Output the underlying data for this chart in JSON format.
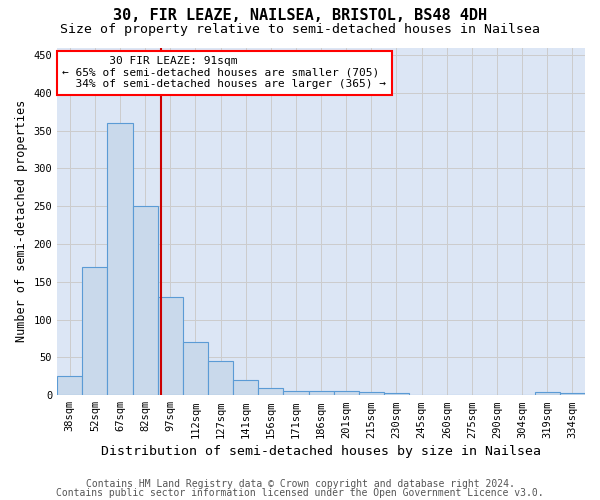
{
  "title1": "30, FIR LEAZE, NAILSEA, BRISTOL, BS48 4DH",
  "title2": "Size of property relative to semi-detached houses in Nailsea",
  "xlabel": "Distribution of semi-detached houses by size in Nailsea",
  "ylabel": "Number of semi-detached properties",
  "bin_labels": [
    "38sqm",
    "52sqm",
    "67sqm",
    "82sqm",
    "97sqm",
    "112sqm",
    "127sqm",
    "141sqm",
    "156sqm",
    "171sqm",
    "186sqm",
    "201sqm",
    "215sqm",
    "230sqm",
    "245sqm",
    "260sqm",
    "275sqm",
    "290sqm",
    "304sqm",
    "319sqm",
    "334sqm"
  ],
  "bin_values": [
    25,
    170,
    360,
    250,
    130,
    70,
    45,
    20,
    10,
    6,
    6,
    5,
    4,
    3,
    0,
    0,
    0,
    0,
    0,
    4,
    3
  ],
  "bar_color": "#c9d9eb",
  "bar_edge_color": "#5b9bd5",
  "red_line_x": 3.65,
  "annotation_title": "30 FIR LEAZE: 91sqm",
  "annotation_line1": "← 65% of semi-detached houses are smaller (705)",
  "annotation_line2": "34% of semi-detached houses are larger (365) →",
  "vline_color": "#cc0000",
  "ylim": [
    0,
    460
  ],
  "yticks": [
    0,
    50,
    100,
    150,
    200,
    250,
    300,
    350,
    400,
    450
  ],
  "footnote1": "Contains HM Land Registry data © Crown copyright and database right 2024.",
  "footnote2": "Contains public sector information licensed under the Open Government Licence v3.0.",
  "title1_fontsize": 11,
  "title2_fontsize": 9.5,
  "xlabel_fontsize": 9.5,
  "ylabel_fontsize": 8.5,
  "tick_fontsize": 7.5,
  "annot_fontsize": 8,
  "footnote_fontsize": 7
}
